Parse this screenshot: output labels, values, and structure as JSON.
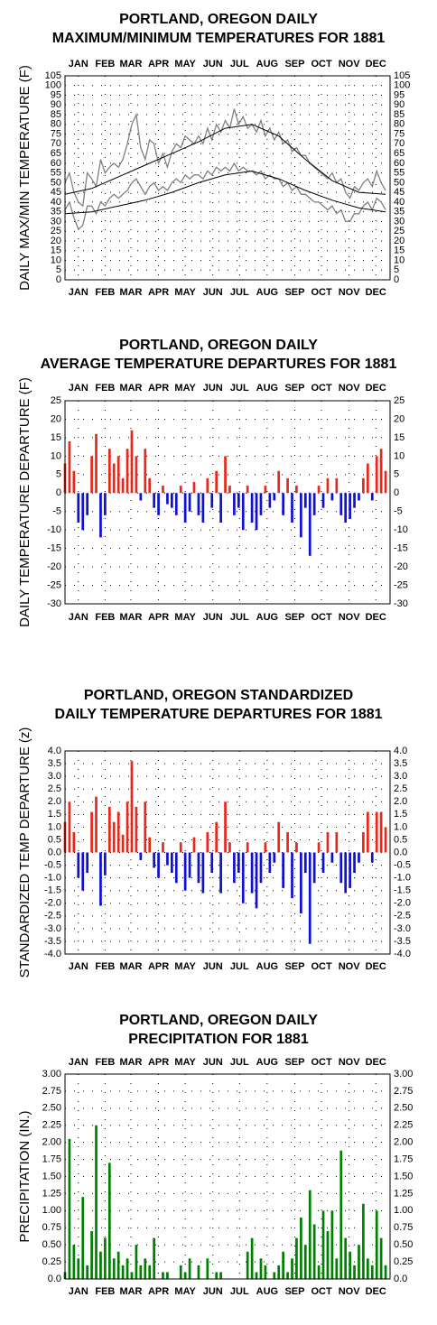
{
  "chart_data": [
    {
      "type": "line",
      "title": [
        "PORTLAND, OREGON DAILY",
        "MAXIMUM/MINIMUM TEMPERATURES FOR 1881"
      ],
      "ylabel": "DAILY MAX/MIN TEMPERATURE (F)",
      "xlim": [
        1,
        366
      ],
      "xticks": [
        {
          "value": 16,
          "label": "JAN"
        },
        {
          "value": 46,
          "label": "FEB"
        },
        {
          "value": 75,
          "label": "MAR"
        },
        {
          "value": 106,
          "label": "APR"
        },
        {
          "value": 136,
          "label": "MAY"
        },
        {
          "value": 167,
          "label": "JUN"
        },
        {
          "value": 197,
          "label": "JUL"
        },
        {
          "value": 228,
          "label": "AUG"
        },
        {
          "value": 259,
          "label": "SEP"
        },
        {
          "value": 289,
          "label": "OCT"
        },
        {
          "value": 320,
          "label": "NOV"
        },
        {
          "value": 350,
          "label": "DEC"
        }
      ],
      "month_label_sides": [
        "top",
        "bottom"
      ],
      "ylim": [
        0,
        105
      ],
      "yticks": [
        0,
        5,
        10,
        15,
        20,
        25,
        30,
        35,
        40,
        45,
        50,
        55,
        60,
        65,
        70,
        75,
        80,
        85,
        90,
        95,
        100,
        105
      ],
      "grid": true,
      "x": [
        1,
        6,
        11,
        16,
        21,
        26,
        31,
        36,
        41,
        46,
        51,
        56,
        61,
        66,
        71,
        76,
        81,
        86,
        91,
        96,
        101,
        106,
        111,
        116,
        121,
        126,
        131,
        136,
        141,
        146,
        151,
        156,
        161,
        166,
        171,
        176,
        181,
        186,
        191,
        196,
        201,
        206,
        211,
        216,
        221,
        226,
        231,
        236,
        241,
        246,
        251,
        256,
        261,
        266,
        271,
        276,
        281,
        286,
        291,
        296,
        301,
        306,
        311,
        316,
        321,
        326,
        331,
        336,
        341,
        346,
        351,
        356,
        361
      ],
      "series": [
        {
          "color": "#808080",
          "values": [
            50,
            55,
            45,
            40,
            38,
            55,
            52,
            48,
            62,
            55,
            58,
            60,
            58,
            62,
            70,
            80,
            85,
            68,
            62,
            72,
            70,
            60,
            65,
            58,
            66,
            70,
            68,
            74,
            72,
            70,
            74,
            70,
            78,
            72,
            80,
            76,
            82,
            78,
            88,
            80,
            84,
            78,
            80,
            76,
            82,
            74,
            78,
            72,
            76,
            70,
            72,
            66,
            68,
            64,
            64,
            60,
            58,
            56,
            54,
            52,
            55,
            50,
            52,
            45,
            42,
            48,
            46,
            50,
            52,
            48,
            56,
            50,
            46
          ]
        },
        {
          "color": "#808080",
          "values": [
            36,
            40,
            32,
            26,
            28,
            38,
            38,
            34,
            40,
            38,
            42,
            44,
            42,
            44,
            46,
            50,
            52,
            48,
            44,
            48,
            50,
            46,
            48,
            46,
            50,
            52,
            50,
            54,
            52,
            54,
            54,
            52,
            56,
            54,
            58,
            56,
            58,
            56,
            60,
            56,
            58,
            56,
            56,
            54,
            56,
            52,
            54,
            52,
            52,
            48,
            50,
            46,
            48,
            44,
            44,
            42,
            40,
            40,
            38,
            36,
            38,
            34,
            36,
            30,
            30,
            34,
            34,
            38,
            40,
            36,
            42,
            40,
            36
          ]
        },
        {
          "color": "#000000",
          "x": [
            1,
            31,
            61,
            91,
            121,
            151,
            181,
            211,
            241,
            271,
            301,
            331,
            361
          ],
          "values": [
            44,
            47,
            53,
            59,
            65,
            71,
            78,
            80,
            74,
            62,
            51,
            45,
            44
          ]
        },
        {
          "color": "#000000",
          "x": [
            1,
            31,
            61,
            91,
            121,
            151,
            181,
            211,
            241,
            271,
            301,
            331,
            361
          ],
          "values": [
            34,
            35,
            38,
            41,
            45,
            50,
            54,
            56,
            52,
            46,
            41,
            37,
            35
          ]
        }
      ]
    },
    {
      "type": "bar",
      "title": [
        "PORTLAND, OREGON DAILY",
        "AVERAGE TEMPERATURE DEPARTURES FOR 1881"
      ],
      "ylabel": "DAILY TEMPERATURE DEPARTURE (F)",
      "xlim": [
        1,
        366
      ],
      "xticks": [
        {
          "value": 16,
          "label": "JAN"
        },
        {
          "value": 46,
          "label": "FEB"
        },
        {
          "value": 75,
          "label": "MAR"
        },
        {
          "value": 106,
          "label": "APR"
        },
        {
          "value": 136,
          "label": "MAY"
        },
        {
          "value": 167,
          "label": "JUN"
        },
        {
          "value": 197,
          "label": "JUL"
        },
        {
          "value": 228,
          "label": "AUG"
        },
        {
          "value": 259,
          "label": "SEP"
        },
        {
          "value": 289,
          "label": "OCT"
        },
        {
          "value": 320,
          "label": "NOV"
        },
        {
          "value": 350,
          "label": "DEC"
        }
      ],
      "month_label_sides": [
        "top",
        "bottom"
      ],
      "ylim": [
        -30,
        25
      ],
      "yticks": [
        -30,
        -25,
        -20,
        -15,
        -10,
        -5,
        0,
        5,
        10,
        15,
        20,
        25
      ],
      "grid": true,
      "pos_color": "#e8281b",
      "neg_color": "#1010d0",
      "x": [
        1,
        6,
        11,
        16,
        21,
        26,
        31,
        36,
        41,
        46,
        51,
        56,
        61,
        66,
        71,
        76,
        81,
        86,
        91,
        96,
        101,
        106,
        111,
        116,
        121,
        126,
        131,
        136,
        141,
        146,
        151,
        156,
        161,
        166,
        171,
        176,
        181,
        186,
        191,
        196,
        201,
        206,
        211,
        216,
        221,
        226,
        231,
        236,
        241,
        246,
        251,
        256,
        261,
        266,
        271,
        276,
        281,
        286,
        291,
        296,
        301,
        306,
        311,
        316,
        321,
        326,
        331,
        336,
        341,
        346,
        351,
        356,
        361
      ],
      "values": [
        8,
        14,
        6,
        -8,
        -10,
        -6,
        10,
        16,
        -12,
        -6,
        12,
        8,
        10,
        4,
        12,
        17,
        10,
        -2,
        12,
        4,
        -4,
        -6,
        2,
        -3,
        -4,
        -6,
        2,
        -8,
        -5,
        3,
        -6,
        -8,
        4,
        -4,
        6,
        -8,
        10,
        2,
        -6,
        -4,
        -10,
        2,
        -8,
        -10,
        -6,
        2,
        -4,
        -2,
        6,
        -6,
        4,
        -8,
        2,
        -12,
        -4,
        -17,
        -6,
        2,
        -4,
        4,
        -2,
        4,
        -6,
        -8,
        -7,
        -4,
        -2,
        4,
        8,
        -2,
        10,
        12,
        6
      ]
    },
    {
      "type": "bar",
      "title": [
        "PORTLAND, OREGON STANDARDIZED",
        "DAILY TEMPERATURE DEPARTURES FOR 1881"
      ],
      "ylabel": "STANDARDIZED TEMP DEPARTURE (z)",
      "xlim": [
        1,
        366
      ],
      "xticks": [
        {
          "value": 16,
          "label": "JAN"
        },
        {
          "value": 46,
          "label": "FEB"
        },
        {
          "value": 75,
          "label": "MAR"
        },
        {
          "value": 106,
          "label": "APR"
        },
        {
          "value": 136,
          "label": "MAY"
        },
        {
          "value": 167,
          "label": "JUN"
        },
        {
          "value": 197,
          "label": "JUL"
        },
        {
          "value": 228,
          "label": "AUG"
        },
        {
          "value": 259,
          "label": "SEP"
        },
        {
          "value": 289,
          "label": "OCT"
        },
        {
          "value": 320,
          "label": "NOV"
        },
        {
          "value": 350,
          "label": "DEC"
        }
      ],
      "month_label_sides": [
        "bottom"
      ],
      "ylim": [
        -4,
        4
      ],
      "yticks": [
        {
          "value": -4,
          "label": "-4.0"
        },
        -3.5,
        {
          "value": -3,
          "label": "-3.0"
        },
        -2.5,
        {
          "value": -2,
          "label": "-2.0"
        },
        -1.5,
        {
          "value": -1,
          "label": "-1.0"
        },
        -0.5,
        {
          "value": 0,
          "label": "0.0"
        },
        0.5,
        {
          "value": 1,
          "label": "1.0"
        },
        1.5,
        {
          "value": 2,
          "label": "2.0"
        },
        2.5,
        {
          "value": 3,
          "label": "3.0"
        },
        3.5,
        {
          "value": 4,
          "label": "4.0"
        }
      ],
      "grid": true,
      "pos_color": "#e8281b",
      "neg_color": "#1010d0",
      "x": [
        1,
        6,
        11,
        16,
        21,
        26,
        31,
        36,
        41,
        46,
        51,
        56,
        61,
        66,
        71,
        76,
        81,
        86,
        91,
        96,
        101,
        106,
        111,
        116,
        121,
        126,
        131,
        136,
        141,
        146,
        151,
        156,
        161,
        166,
        171,
        176,
        181,
        186,
        191,
        196,
        201,
        206,
        211,
        216,
        221,
        226,
        231,
        236,
        241,
        246,
        251,
        256,
        261,
        266,
        271,
        276,
        281,
        286,
        291,
        296,
        301,
        306,
        311,
        316,
        321,
        326,
        331,
        336,
        341,
        346,
        351,
        356,
        361
      ],
      "values": [
        1.2,
        2.0,
        0.8,
        -1.0,
        -1.5,
        -0.8,
        1.6,
        2.2,
        -2.1,
        -0.9,
        1.8,
        1.2,
        1.6,
        0.7,
        2.0,
        3.6,
        1.8,
        -0.3,
        2.0,
        0.6,
        -0.6,
        -1.0,
        0.4,
        -0.5,
        -0.8,
        -1.2,
        0.4,
        -1.5,
        -1.0,
        0.6,
        -1.2,
        -1.6,
        0.8,
        -0.8,
        1.2,
        -1.6,
        2.0,
        0.4,
        -1.2,
        -0.8,
        -2.0,
        0.4,
        -1.6,
        -2.2,
        -1.2,
        0.4,
        -0.8,
        -0.4,
        1.2,
        -1.4,
        0.8,
        -1.8,
        0.4,
        -2.4,
        -0.8,
        -3.6,
        -1.2,
        0.4,
        -0.8,
        0.8,
        -0.4,
        0.8,
        -1.2,
        -1.6,
        -1.4,
        -0.8,
        -0.4,
        0.8,
        1.6,
        -0.4,
        1.6,
        1.6,
        1.0
      ]
    },
    {
      "type": "bar",
      "title": [
        "PORTLAND, OREGON DAILY",
        "PRECIPITATION FOR 1881"
      ],
      "ylabel": "PRECIPITATION (IN.)",
      "xlim": [
        1,
        366
      ],
      "xticks": [
        {
          "value": 16,
          "label": "JAN"
        },
        {
          "value": 46,
          "label": "FEB"
        },
        {
          "value": 75,
          "label": "MAR"
        },
        {
          "value": 106,
          "label": "APR"
        },
        {
          "value": 136,
          "label": "MAY"
        },
        {
          "value": 167,
          "label": "JUN"
        },
        {
          "value": 197,
          "label": "JUL"
        },
        {
          "value": 228,
          "label": "AUG"
        },
        {
          "value": 259,
          "label": "SEP"
        },
        {
          "value": 289,
          "label": "OCT"
        },
        {
          "value": 320,
          "label": "NOV"
        },
        {
          "value": 350,
          "label": "DEC"
        }
      ],
      "month_label_sides": [
        "top",
        "bottom"
      ],
      "ylim": [
        0,
        3
      ],
      "yticks": [
        {
          "value": 0,
          "label": "0.0"
        },
        0.25,
        {
          "value": 0.5,
          "label": "0.50"
        },
        0.75,
        {
          "value": 1,
          "label": "1.00"
        },
        1.25,
        {
          "value": 1.5,
          "label": "1.50"
        },
        1.75,
        {
          "value": 2,
          "label": "2.00"
        },
        2.25,
        {
          "value": 2.5,
          "label": "2.50"
        },
        2.75,
        {
          "value": 3,
          "label": "3.00"
        }
      ],
      "grid": true,
      "pos_color": "#008000",
      "neg_color": "#008000",
      "x": [
        1,
        6,
        11,
        16,
        21,
        26,
        31,
        36,
        41,
        46,
        51,
        56,
        61,
        66,
        71,
        76,
        81,
        86,
        91,
        96,
        101,
        106,
        111,
        116,
        121,
        126,
        131,
        136,
        141,
        146,
        151,
        156,
        161,
        166,
        171,
        176,
        181,
        186,
        191,
        196,
        201,
        206,
        211,
        216,
        221,
        226,
        231,
        236,
        241,
        246,
        251,
        256,
        261,
        266,
        271,
        276,
        281,
        286,
        291,
        296,
        301,
        306,
        311,
        316,
        321,
        326,
        331,
        336,
        341,
        346,
        351,
        356,
        361
      ],
      "values": [
        0.1,
        2.05,
        0.5,
        0.3,
        1.2,
        0.2,
        0.7,
        2.25,
        0.4,
        0.6,
        1.7,
        0.3,
        0.4,
        0.2,
        0.3,
        0.1,
        0.5,
        0.2,
        0.3,
        0.2,
        0.6,
        0,
        0.1,
        0.1,
        0,
        0,
        0.2,
        0.1,
        0.3,
        0,
        0.2,
        0,
        0.3,
        0,
        0.1,
        0.1,
        0,
        0,
        0,
        0,
        0,
        0.4,
        0.6,
        0.1,
        0.3,
        0.2,
        0,
        0.1,
        0.2,
        0.4,
        0.1,
        0.3,
        0.6,
        0.9,
        0.5,
        1.3,
        0.8,
        0.2,
        1.0,
        0.7,
        1.0,
        0.3,
        1.88,
        0.6,
        0.4,
        0.2,
        0.5,
        1.1,
        0.3,
        0.2,
        1.0,
        0.6,
        0.2
      ]
    }
  ]
}
